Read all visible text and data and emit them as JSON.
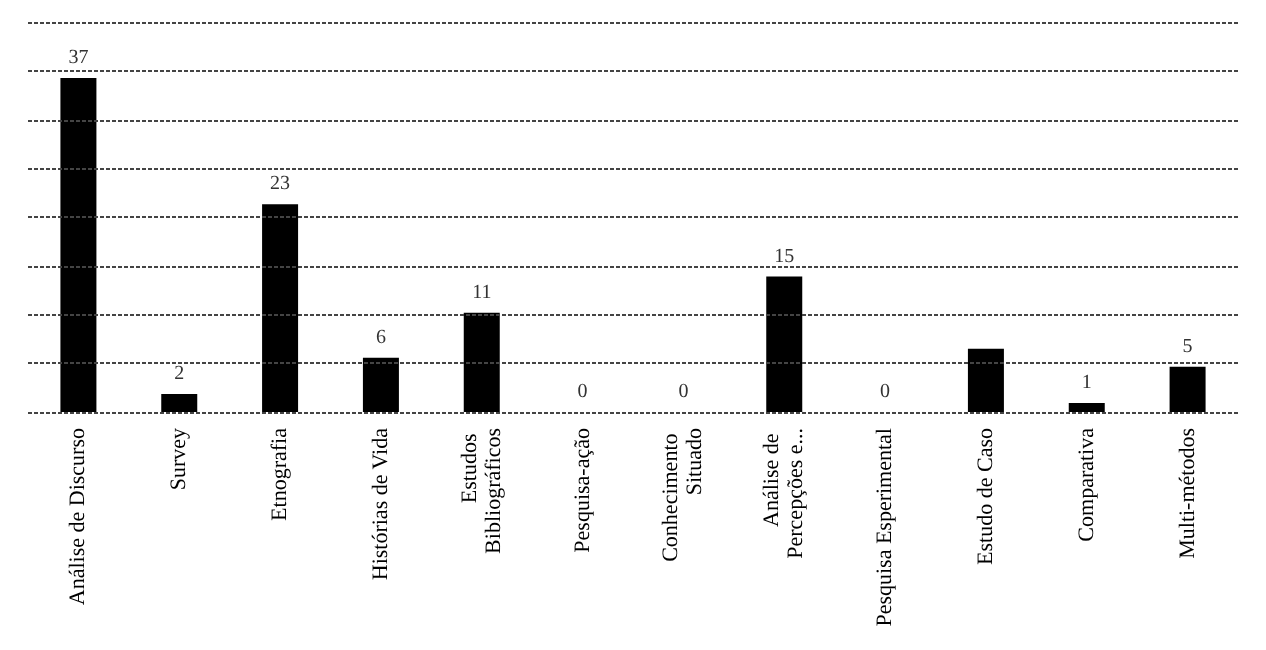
{
  "chart_data": {
    "type": "bar",
    "categories": [
      "Análise de Discurso",
      "Survey",
      "Etnografia",
      "Histórias de Vida",
      "Estudos Bibliográficos",
      "Pesquisa-ação",
      "Conhecimento Situado",
      "Análise de Percepções e...",
      "Pesquisa Esperimental",
      "Estudo de Caso",
      "Comparativa",
      "Multi-métodos"
    ],
    "values": [
      37,
      2,
      23,
      6,
      11,
      0,
      0,
      15,
      0,
      7,
      1,
      5
    ],
    "value_labels": [
      "37",
      "2",
      "23",
      "6",
      "11",
      "0",
      "0",
      "15",
      "0",
      null,
      "1",
      "5"
    ],
    "color": "#000000",
    "ylim": [
      0,
      43.2
    ],
    "yticks": [
      {
        "value": 0,
        "label": null
      },
      {
        "value": 5.4,
        "label": null
      },
      {
        "value": 10.8,
        "label": null
      },
      {
        "value": 16.2,
        "label": null
      },
      {
        "value": 21.6,
        "label": null
      },
      {
        "value": 27,
        "label": null
      },
      {
        "value": 32.4,
        "label": null
      },
      {
        "value": 37.8,
        "label": null
      },
      {
        "value": 43.2,
        "label": null
      }
    ],
    "grid": "y",
    "tick_labels": "x"
  }
}
